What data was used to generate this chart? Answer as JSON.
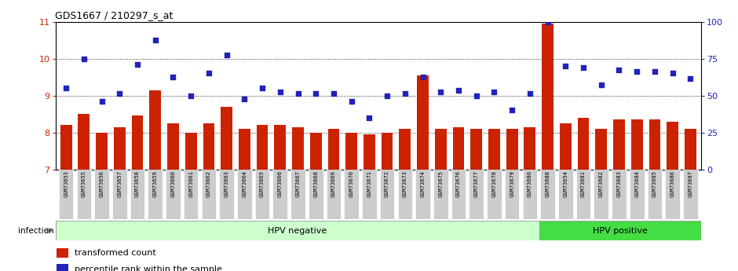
{
  "title": "GDS1667 / 210297_s_at",
  "samples": [
    "GSM73653",
    "GSM73655",
    "GSM73656",
    "GSM73657",
    "GSM73658",
    "GSM73659",
    "GSM73660",
    "GSM73661",
    "GSM73662",
    "GSM73663",
    "GSM73664",
    "GSM73665",
    "GSM73666",
    "GSM73667",
    "GSM73668",
    "GSM73669",
    "GSM73670",
    "GSM73671",
    "GSM73672",
    "GSM73673",
    "GSM73674",
    "GSM73675",
    "GSM73676",
    "GSM73677",
    "GSM73678",
    "GSM73679",
    "GSM73680",
    "GSM73688",
    "GSM73654",
    "GSM73681",
    "GSM73682",
    "GSM73683",
    "GSM73684",
    "GSM73685",
    "GSM73686",
    "GSM73687"
  ],
  "bar_values": [
    8.2,
    8.5,
    8.0,
    8.15,
    8.45,
    9.15,
    8.25,
    8.0,
    8.25,
    8.7,
    8.1,
    8.2,
    8.2,
    8.15,
    8.0,
    8.1,
    8.0,
    7.95,
    8.0,
    8.1,
    9.55,
    8.1,
    8.15,
    8.1,
    8.1,
    8.1,
    8.15,
    10.95,
    8.25,
    8.4,
    8.1,
    8.35,
    8.35,
    8.35,
    8.3,
    8.1
  ],
  "scatter_values": [
    9.2,
    10.0,
    8.85,
    9.05,
    9.85,
    10.5,
    9.5,
    9.0,
    9.6,
    10.1,
    8.9,
    9.2,
    9.1,
    9.05,
    9.05,
    9.05,
    8.85,
    8.4,
    9.0,
    9.05,
    9.5,
    9.1,
    9.15,
    9.0,
    9.1,
    8.6,
    9.05,
    11.0,
    9.8,
    9.75,
    9.3,
    9.7,
    9.65,
    9.65,
    9.6,
    9.45
  ],
  "hpv_negative_count": 27,
  "hpv_positive_count": 9,
  "ylim_left": [
    7,
    11
  ],
  "ylim_right": [
    0,
    100
  ],
  "yticks_left": [
    7,
    8,
    9,
    10,
    11
  ],
  "yticks_right": [
    0,
    25,
    50,
    75,
    100
  ],
  "bar_color": "#cc2200",
  "scatter_color": "#2222bb",
  "bg_color_hpv_neg": "#ccffcc",
  "bg_color_hpv_pos": "#44dd44",
  "label_area_color": "#cccccc",
  "infection_label": "infection",
  "hpv_neg_label": "HPV negative",
  "hpv_pos_label": "HPV positive",
  "legend_bar": "transformed count",
  "legend_scatter": "percentile rank within the sample"
}
